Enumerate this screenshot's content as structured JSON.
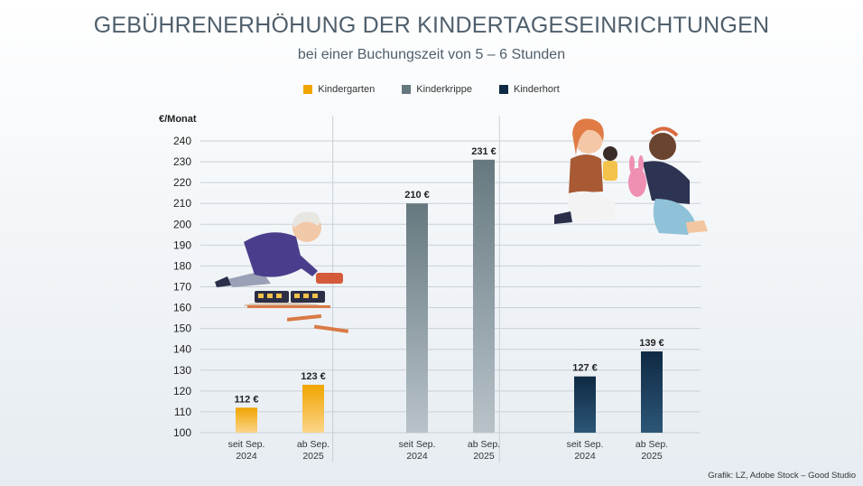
{
  "chart_data": {
    "type": "bar",
    "title": "GEBÜHRENERHÖHUNG DER KINDERTAGESEINRICHTUNGEN",
    "subtitle": "bei einer Buchungszeit von 5 – 6 Stunden",
    "ylabel": "€/Monat",
    "ylim": [
      100,
      240
    ],
    "yticks": [
      100,
      110,
      120,
      130,
      140,
      150,
      160,
      170,
      180,
      190,
      200,
      210,
      220,
      230,
      240
    ],
    "grid": true,
    "legend_position": "top-center",
    "series": [
      {
        "name": "Kindergarten",
        "color": "#f0a500",
        "values": [
          112,
          123
        ],
        "labels": [
          "112 €",
          "123 €"
        ]
      },
      {
        "name": "Kinderkrippe",
        "color": "#66787f",
        "values": [
          210,
          231
        ],
        "labels": [
          "210 €",
          "231 €"
        ]
      },
      {
        "name": "Kinderhort",
        "color": "#0f2a44",
        "values": [
          127,
          139
        ],
        "labels": [
          "127 €",
          "139 €"
        ]
      }
    ],
    "categories": [
      [
        "seit Sep.",
        "2024"
      ],
      [
        "ab Sep.",
        "2025"
      ]
    ]
  },
  "credit": "Grafik: LZ, Adobe Stock – Good Studio",
  "illustrations": [
    "child-playing-with-toy-train",
    "two-women-with-doll-and-bunny"
  ]
}
